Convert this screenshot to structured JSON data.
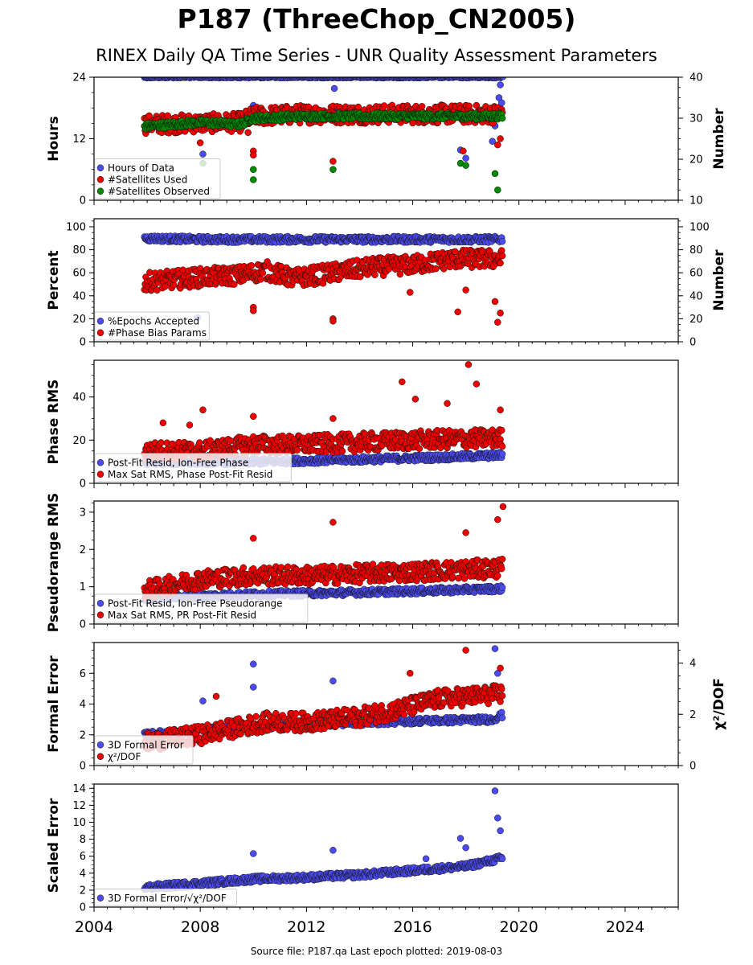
{
  "title": "P187 (ThreeChop_CN2005)",
  "subtitle": "RINEX Daily QA Time Series - UNR Quality Assessment Parameters",
  "footer": "Source file: P187.qa Last epoch plotted: 2019-08-03",
  "colors": {
    "blue": "#4b4bf0",
    "red": "#ee0000",
    "green": "#008800",
    "edge": "#111111"
  },
  "chart_data": [
    {
      "type": "scatter",
      "ylabel": "Hours",
      "ylabel_right": "Number",
      "xlim": [
        2004,
        2026
      ],
      "ylim": [
        0,
        24
      ],
      "ylim_right": [
        10,
        40
      ],
      "yticks": [
        0,
        12,
        24
      ],
      "yticks_right": [
        10,
        20,
        30,
        40
      ],
      "legend": [
        "Hours of Data",
        "#Satellites Used",
        "#Satellites Observed"
      ],
      "legend_position": "lower-left",
      "series": [
        {
          "name": "Hours of Data",
          "axis": "left",
          "color": "blue",
          "baseline": [
            [
              2005.9,
              24
            ],
            [
              2019.4,
              24
            ]
          ],
          "outliers": [
            [
              2010.0,
              18.5
            ],
            [
              2013.05,
              21.8
            ],
            [
              2013.05,
              17.5
            ],
            [
              2008.1,
              9.0
            ],
            [
              2017.8,
              9.8
            ],
            [
              2018.0,
              8.2
            ],
            [
              2019.0,
              11.5
            ],
            [
              2019.1,
              14.5
            ],
            [
              2019.2,
              17.0
            ],
            [
              2019.25,
              20.0
            ],
            [
              2019.3,
              22.5
            ],
            [
              2019.35,
              19.0
            ]
          ]
        },
        {
          "name": "#Satellites Used",
          "axis": "right",
          "color": "red",
          "trend": [
            [
              2005.9,
              28.5
            ],
            [
              2009.5,
              29.0
            ],
            [
              2010.0,
              30.5
            ],
            [
              2012.0,
              31.0
            ],
            [
              2014.0,
              31.0
            ],
            [
              2016.0,
              31.0
            ],
            [
              2019.4,
              31.0
            ]
          ],
          "outliers": [
            [
              2008.0,
              24.0
            ],
            [
              2010.0,
              22.0
            ],
            [
              2010.0,
              21.0
            ],
            [
              2013.0,
              19.5
            ],
            [
              2017.9,
              22.0
            ],
            [
              2019.2,
              23.5
            ],
            [
              2019.3,
              25.0
            ],
            [
              2009.8,
              26.5
            ]
          ]
        },
        {
          "name": "#Satellites Observed",
          "axis": "right",
          "color": "green",
          "trend": [
            [
              2005.9,
              28.0
            ],
            [
              2008.0,
              29.0
            ],
            [
              2009.5,
              28.5
            ],
            [
              2010.0,
              30.0
            ],
            [
              2012.0,
              30.5
            ],
            [
              2014.0,
              30.5
            ],
            [
              2016.0,
              30.5
            ],
            [
              2019.4,
              30.5
            ]
          ],
          "outliers": [
            [
              2008.1,
              19.0
            ],
            [
              2010.0,
              17.5
            ],
            [
              2010.0,
              15.0
            ],
            [
              2013.0,
              17.5
            ],
            [
              2017.8,
              19.0
            ],
            [
              2018.0,
              18.5
            ],
            [
              2019.2,
              12.5
            ],
            [
              2019.1,
              16.5
            ]
          ]
        }
      ]
    },
    {
      "type": "scatter",
      "ylabel": "Percent",
      "ylabel_right": "Number",
      "xlim": [
        2004,
        2026
      ],
      "ylim": [
        0,
        107
      ],
      "ylim_right": [
        0,
        107
      ],
      "yticks": [
        0,
        20,
        40,
        60,
        80,
        100
      ],
      "yticks_right": [
        0,
        20,
        40,
        60,
        80,
        100
      ],
      "legend": [
        "%Epochs Accepted",
        "#Phase Bias Params"
      ],
      "legend_position": "lower-left",
      "series": [
        {
          "name": "%Epochs Accepted",
          "axis": "left",
          "color": "blue",
          "trend": [
            [
              2005.9,
              90
            ],
            [
              2008.0,
              89
            ],
            [
              2010.0,
              89
            ],
            [
              2012.0,
              89
            ],
            [
              2014.0,
              89
            ],
            [
              2016.0,
              89
            ],
            [
              2019.4,
              89
            ]
          ],
          "outliers": [
            [
              2007.9,
              21
            ]
          ]
        },
        {
          "name": "#Phase Bias Params",
          "axis": "right",
          "color": "red",
          "trend": [
            [
              2005.9,
              52
            ],
            [
              2008.0,
              56
            ],
            [
              2009.5,
              58
            ],
            [
              2010.5,
              62
            ],
            [
              2011.5,
              55
            ],
            [
              2013.0,
              60
            ],
            [
              2014.5,
              65
            ],
            [
              2016.0,
              67
            ],
            [
              2017.5,
              72
            ],
            [
              2019.4,
              72
            ]
          ],
          "outliers": [
            [
              2010.0,
              30
            ],
            [
              2010.0,
              27
            ],
            [
              2013.0,
              20
            ],
            [
              2013.0,
              18
            ],
            [
              2015.9,
              43
            ],
            [
              2017.7,
              26
            ],
            [
              2018.0,
              45
            ],
            [
              2019.2,
              17
            ],
            [
              2019.3,
              25
            ],
            [
              2019.1,
              35
            ]
          ]
        }
      ]
    },
    {
      "type": "scatter",
      "ylabel": "Phase RMS",
      "xlim": [
        2004,
        2026
      ],
      "ylim": [
        0,
        57
      ],
      "yticks": [
        0,
        20,
        40
      ],
      "legend": [
        "Post-Fit Resid, Ion-Free Phase",
        "Max Sat RMS, Phase Post-Fit Resid"
      ],
      "legend_position": "lower-left",
      "series": [
        {
          "name": "Post-Fit Resid, Ion-Free Phase",
          "color": "blue",
          "trend": [
            [
              2005.9,
              10
            ],
            [
              2010.0,
              10
            ],
            [
              2014.0,
              11
            ],
            [
              2017.0,
              12
            ],
            [
              2019.4,
              13
            ]
          ],
          "outliers": []
        },
        {
          "name": "Max Sat RMS, Phase Post-Fit Resid",
          "color": "red",
          "trend": [
            [
              2005.9,
              15
            ],
            [
              2008.0,
              15
            ],
            [
              2010.0,
              18
            ],
            [
              2012.0,
              18
            ],
            [
              2014.0,
              19
            ],
            [
              2016.0,
              20
            ],
            [
              2019.4,
              21
            ]
          ],
          "outliers": [
            [
              2015.6,
              47
            ],
            [
              2018.1,
              55
            ],
            [
              2018.4,
              46
            ],
            [
              2016.1,
              39
            ],
            [
              2017.3,
              37
            ],
            [
              2006.6,
              28
            ],
            [
              2007.6,
              27
            ],
            [
              2008.1,
              34
            ],
            [
              2010.0,
              31
            ],
            [
              2013.0,
              30
            ],
            [
              2019.3,
              34
            ]
          ]
        }
      ]
    },
    {
      "type": "scatter",
      "ylabel": "Pseudorange RMS",
      "xlim": [
        2004,
        2026
      ],
      "ylim": [
        0,
        3.3
      ],
      "yticks": [
        0,
        1,
        2,
        3
      ],
      "legend": [
        "Post-Fit Resid, Ion-Free Pseudorange",
        "Max Sat RMS, PR Post-Fit Resid"
      ],
      "legend_position": "lower-left",
      "series": [
        {
          "name": "Post-Fit Resid, Ion-Free Pseudorange",
          "color": "blue",
          "trend": [
            [
              2005.9,
              0.7
            ],
            [
              2010.0,
              0.8
            ],
            [
              2014.0,
              0.85
            ],
            [
              2017.0,
              0.9
            ],
            [
              2019.4,
              0.95
            ]
          ],
          "outliers": []
        },
        {
          "name": "Max Sat RMS, PR Post-Fit Resid",
          "color": "red",
          "trend": [
            [
              2005.9,
              0.9
            ],
            [
              2008.0,
              1.2
            ],
            [
              2010.0,
              1.3
            ],
            [
              2012.0,
              1.3
            ],
            [
              2014.0,
              1.35
            ],
            [
              2016.0,
              1.4
            ],
            [
              2019.4,
              1.5
            ]
          ],
          "outliers": [
            [
              2010.0,
              2.3
            ],
            [
              2013.0,
              2.73
            ],
            [
              2018.0,
              2.45
            ],
            [
              2019.4,
              3.15
            ],
            [
              2019.2,
              2.8
            ]
          ]
        }
      ]
    },
    {
      "type": "scatter",
      "ylabel": "Formal Error",
      "ylabel_right": "χ²/DOF",
      "xlim": [
        2004,
        2026
      ],
      "ylim": [
        0,
        8
      ],
      "ylim_right": [
        0,
        4.8
      ],
      "yticks": [
        0,
        2,
        4,
        6
      ],
      "yticks_right": [
        0,
        2,
        4
      ],
      "legend": [
        "3D Formal Error",
        "χ²/DOF"
      ],
      "legend_position": "lower-left",
      "series": [
        {
          "name": "3D Formal Error",
          "axis": "left",
          "color": "blue",
          "trend": [
            [
              2005.9,
              2.0
            ],
            [
              2008.0,
              2.3
            ],
            [
              2010.0,
              2.5
            ],
            [
              2012.0,
              2.7
            ],
            [
              2014.0,
              2.8
            ],
            [
              2016.0,
              2.9
            ],
            [
              2019.0,
              3.0
            ],
            [
              2019.4,
              3.3
            ]
          ],
          "outliers": [
            [
              2010.0,
              6.6
            ],
            [
              2010.0,
              5.1
            ],
            [
              2013.0,
              5.5
            ],
            [
              2008.1,
              4.2
            ],
            [
              2019.1,
              7.6
            ],
            [
              2019.2,
              6.0
            ]
          ]
        },
        {
          "name": "χ²/DOF",
          "axis": "right",
          "color": "red",
          "trend": [
            [
              2005.9,
              0.9
            ],
            [
              2008.0,
              1.2
            ],
            [
              2009.5,
              1.5
            ],
            [
              2010.5,
              1.7
            ],
            [
              2012.0,
              1.7
            ],
            [
              2014.0,
              1.9
            ],
            [
              2015.5,
              2.2
            ],
            [
              2017.0,
              2.6
            ],
            [
              2019.4,
              2.8
            ]
          ],
          "outliers": [
            [
              2018.0,
              4.5
            ],
            [
              2015.9,
              3.6
            ],
            [
              2008.6,
              2.7
            ],
            [
              2019.3,
              3.8
            ]
          ]
        }
      ]
    },
    {
      "type": "scatter",
      "ylabel": "Scaled Error",
      "xlim": [
        2004,
        2026
      ],
      "ylim": [
        0,
        14.5
      ],
      "yticks": [
        0,
        2,
        4,
        6,
        8,
        10,
        12,
        14
      ],
      "xticks": [
        2004,
        2008,
        2012,
        2016,
        2020,
        2024
      ],
      "legend": [
        "3D Formal Error/√χ²/DOF"
      ],
      "legend_position": "lower-left",
      "series": [
        {
          "name": "3D Formal Error/√χ²/DOF",
          "color": "blue",
          "trend": [
            [
              2005.9,
              2.3
            ],
            [
              2008.0,
              2.8
            ],
            [
              2010.0,
              3.3
            ],
            [
              2012.0,
              3.5
            ],
            [
              2014.0,
              3.8
            ],
            [
              2016.0,
              4.3
            ],
            [
              2018.0,
              4.8
            ],
            [
              2019.4,
              5.8
            ]
          ],
          "outliers": [
            [
              2019.1,
              13.7
            ],
            [
              2019.2,
              10.5
            ],
            [
              2019.3,
              9.0
            ],
            [
              2010.0,
              6.3
            ],
            [
              2013.0,
              6.7
            ],
            [
              2017.8,
              8.1
            ],
            [
              2018.0,
              7.0
            ],
            [
              2016.5,
              5.7
            ]
          ]
        }
      ]
    }
  ]
}
